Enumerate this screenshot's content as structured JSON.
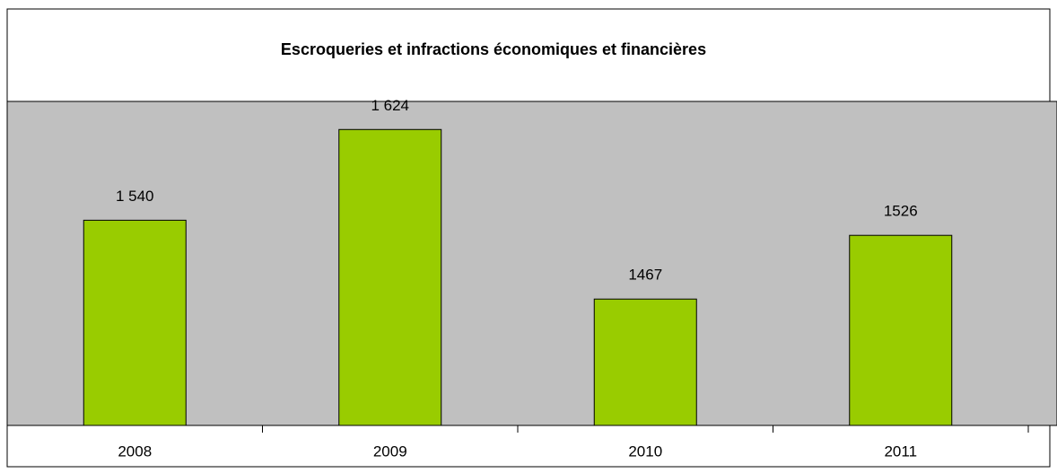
{
  "chart_data": {
    "type": "bar",
    "title": "Escroqueries et infractions économiques et financières",
    "categories": [
      "2008",
      "2009",
      "2010",
      "2011"
    ],
    "values": [
      1540,
      1624,
      1467,
      1526
    ],
    "value_labels": [
      "1 540",
      "1 624",
      "1467",
      "1526"
    ],
    "color": "#99cc00",
    "plot_background": "#c0c0c0",
    "ylim": [
      1350,
      1650
    ]
  }
}
